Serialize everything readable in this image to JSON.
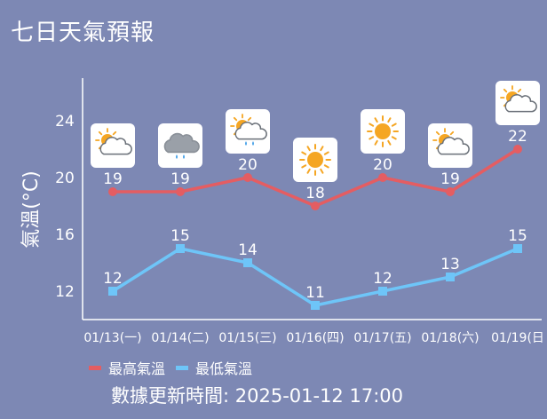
{
  "title": "七日天氣預報",
  "colors": {
    "background": "#7d88b4",
    "high": "#e45d62",
    "low": "#6ec5f8",
    "axis": "#ffffff"
  },
  "chart_data": {
    "type": "line",
    "ylabel": "氣溫(°C)",
    "yticks": [
      12,
      16,
      20,
      24
    ],
    "ylim": [
      10,
      28
    ],
    "categories": [
      "01/13(一)",
      "01/14(二)",
      "01/15(三)",
      "01/16(四)",
      "01/17(五)",
      "01/18(六)",
      "01/19(日"
    ],
    "icons": [
      "sun-cloud-icon",
      "rain-cloud-icon",
      "sun-cloud-rain-icon",
      "sun-icon",
      "sun-icon",
      "sun-cloud-icon",
      "sun-cloud-icon"
    ],
    "series": [
      {
        "name": "最高氣溫",
        "values": [
          19,
          19,
          20,
          18,
          20,
          19,
          22
        ],
        "color": "#e45d62",
        "marker": "circle"
      },
      {
        "name": "最低氣溫",
        "values": [
          12,
          15,
          14,
          11,
          12,
          13,
          15
        ],
        "color": "#6ec5f8",
        "marker": "square"
      }
    ]
  },
  "legend": {
    "high_label": "最高氣溫",
    "low_label": "最低氣溫"
  },
  "updated_text": "數據更新時間: 2025-01-12 17:00"
}
